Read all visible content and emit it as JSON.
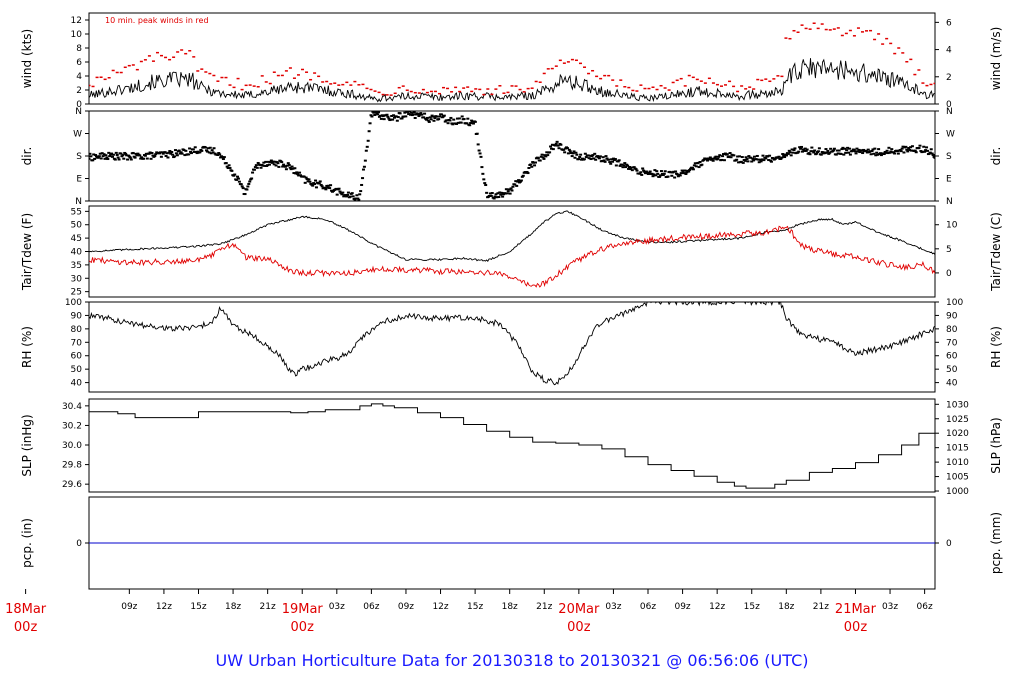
{
  "colors": {
    "series_primary": "#000000",
    "series_secondary": "#e00000",
    "precip_line": "#0000cc",
    "date_labels": "#e00000",
    "title": "#1a1aff"
  },
  "title": "UW Urban Horticulture Data for 20130318  to  20130321 @ 06:56:06  (UTC)",
  "chart_data": {
    "type": "line",
    "title": "UW Urban Horticulture Data for 20130318  to  20130321 @ 06:56:06  (UTC)",
    "x_unit": "hours from 2013-03-18 00z (UTC)",
    "x_range": [
      5.5,
      78.9
    ],
    "x_ticks": [
      {
        "t": 9,
        "label": "09z"
      },
      {
        "t": 12,
        "label": "12z"
      },
      {
        "t": 15,
        "label": "15z"
      },
      {
        "t": 18,
        "label": "18z"
      },
      {
        "t": 21,
        "label": "21z"
      },
      {
        "t": 27,
        "label": "03z"
      },
      {
        "t": 30,
        "label": "06z"
      },
      {
        "t": 33,
        "label": "09z"
      },
      {
        "t": 36,
        "label": "12z"
      },
      {
        "t": 39,
        "label": "15z"
      },
      {
        "t": 42,
        "label": "18z"
      },
      {
        "t": 45,
        "label": "21z"
      },
      {
        "t": 51,
        "label": "03z"
      },
      {
        "t": 54,
        "label": "06z"
      },
      {
        "t": 57,
        "label": "09z"
      },
      {
        "t": 60,
        "label": "12z"
      },
      {
        "t": 63,
        "label": "15z"
      },
      {
        "t": 66,
        "label": "18z"
      },
      {
        "t": 69,
        "label": "21z"
      },
      {
        "t": 75,
        "label": "03z"
      },
      {
        "t": 78,
        "label": "06z"
      }
    ],
    "date_labels": [
      {
        "t": 0,
        "day": "18Mar",
        "hour": "00z"
      },
      {
        "t": 24,
        "day": "19Mar",
        "hour": "00z"
      },
      {
        "t": 48,
        "day": "20Mar",
        "hour": "00z"
      },
      {
        "t": 72,
        "day": "21Mar",
        "hour": "00z"
      }
    ],
    "panels": [
      {
        "id": "wind",
        "ylabel_left": "wind (kts)",
        "ylabel_right": "wind (m/s)",
        "ylim": [
          0,
          13
        ],
        "yticks_left": [
          0,
          2,
          4,
          6,
          8,
          10,
          12
        ],
        "right_axis": {
          "ticks": [
            0,
            2,
            4,
            6
          ],
          "factor": 0.514444
        },
        "annotation": "10 min. peak winds in red",
        "series": [
          {
            "name": "wind speed",
            "style": "line",
            "x": [
              5.5,
              7,
              9,
              11,
              13,
              14.5,
              15,
              17,
              19,
              21,
              23,
              25,
              27,
              29,
              30,
              32,
              34,
              36,
              38,
              40,
              42,
              44,
              45.5,
              46.5,
              48,
              50,
              52,
              54,
              56,
              58,
              60,
              62,
              64,
              65.5,
              66,
              67,
              68,
              70,
              72,
              74,
              76,
              78,
              78.9
            ],
            "values": [
              1.0,
              1.5,
              2.0,
              2.8,
              3.2,
              3.0,
              2.2,
              1.3,
              1.0,
              1.5,
              2.2,
              2.0,
              1.5,
              1.0,
              0.6,
              0.8,
              1.0,
              0.8,
              1.0,
              0.9,
              0.8,
              1.1,
              2.0,
              3.0,
              2.6,
              1.6,
              1.0,
              0.6,
              1.0,
              1.6,
              1.4,
              1.0,
              1.2,
              1.5,
              3.2,
              4.2,
              4.6,
              4.6,
              4.2,
              3.6,
              2.6,
              1.3,
              1.0
            ]
          },
          {
            "name": "10 min. peak wind",
            "style": "points",
            "x": [
              5.5,
              7,
              9,
              11,
              13,
              14.5,
              15,
              17,
              19,
              21,
              23,
              25,
              27,
              29,
              30,
              32,
              34,
              36,
              38,
              40,
              42,
              44,
              45.5,
              46.5,
              48,
              50,
              52,
              54,
              56,
              58,
              60,
              62,
              64,
              65.5,
              66,
              67,
              68,
              70,
              72,
              74,
              76,
              78,
              78.9
            ],
            "values": [
              3.0,
              3.8,
              5.0,
              6.5,
              7.0,
              6.8,
              4.5,
              3.2,
              2.8,
              3.5,
              4.5,
              4.2,
              3.4,
              2.6,
              1.8,
              2.0,
              2.4,
              2.0,
              2.2,
              2.0,
              1.8,
              2.6,
              4.5,
              6.2,
              5.4,
              3.6,
              2.6,
              1.8,
              2.4,
              3.5,
              3.2,
              2.4,
              2.8,
              3.4,
              9.0,
              11.0,
              11.2,
              10.8,
              10.2,
              9.5,
              7.0,
              3.5,
              3.0
            ]
          }
        ]
      },
      {
        "id": "dir",
        "ylabel_left": "dir.",
        "ylabel_right": "dir.",
        "ylim": [
          0,
          360
        ],
        "yticks_left": [
          0,
          90,
          180,
          270,
          360
        ],
        "ytick_labels": [
          "N",
          "E",
          "S",
          "W",
          "N"
        ],
        "series": [
          {
            "name": "wind direction",
            "style": "points",
            "x": [
              5.5,
              7,
              9,
              11,
              13,
              15,
              16.5,
              17.5,
              18.5,
              19,
              20,
              21,
              22,
              23,
              24,
              25,
              26,
              27,
              28,
              29,
              30,
              31,
              32,
              33,
              34,
              35,
              36,
              37,
              38,
              39,
              40,
              41,
              42,
              43,
              44,
              45,
              46,
              47,
              48,
              49,
              50,
              51,
              52,
              53,
              54,
              55,
              56,
              57,
              58,
              59,
              60,
              61,
              62,
              63,
              64,
              65,
              66,
              67,
              68,
              70,
              72,
              74,
              76,
              78,
              78.9
            ],
            "values": [
              175,
              180,
              178,
              182,
              190,
              205,
              200,
              150,
              80,
              30,
              140,
              155,
              150,
              135,
              90,
              70,
              60,
              40,
              20,
              15,
              345,
              340,
              330,
              350,
              345,
              330,
              335,
              320,
              325,
              310,
              30,
              20,
              40,
              90,
              150,
              180,
              230,
              200,
              175,
              180,
              170,
              160,
              140,
              120,
              115,
              110,
              105,
              112,
              135,
              160,
              170,
              180,
              165,
              170,
              168,
              172,
              185,
              205,
              200,
              198,
              200,
              195,
              205,
              210,
              185
            ]
          }
        ]
      },
      {
        "id": "temp",
        "ylabel_left": "Tair/Tdew (F)",
        "ylabel_right": "Tair/Tdew (C)",
        "ylim": [
          23,
          57
        ],
        "yticks_left": [
          25,
          30,
          35,
          40,
          45,
          50,
          55
        ],
        "right_axis": {
          "ticks": [
            0,
            5,
            10
          ],
          "unit": "C"
        },
        "series": [
          {
            "name": "Tair",
            "style": "line",
            "x": [
              5.5,
              8,
              10,
              13,
              15,
              16,
              17,
              19,
              21,
              22,
              24,
              26,
              27,
              28.5,
              30,
              31,
              33,
              36,
              38,
              40,
              42,
              44,
              45,
              46,
              47,
              48,
              50,
              52,
              54,
              56,
              58,
              60,
              62,
              63,
              64,
              65,
              66,
              67,
              69,
              70,
              71,
              72,
              74,
              76,
              78.9
            ],
            "values": [
              40,
              40.5,
              41,
              41.5,
              42,
              42.5,
              43,
              46,
              50,
              51,
              53,
              52,
              50,
              47,
              43,
              41,
              37,
              37,
              37.5,
              36.5,
              40,
              47,
              51,
              54,
              55,
              53,
              48,
              45,
              43.5,
              43.5,
              44,
              44.5,
              45,
              46,
              47,
              47.5,
              48,
              50,
              52,
              52,
              50,
              51,
              47,
              44,
              39
            ]
          },
          {
            "name": "Tdew",
            "style": "line",
            "x": [
              5.5,
              7,
              9,
              11,
              13,
              15,
              16,
              17,
              18,
              19,
              20,
              21,
              22,
              23,
              24,
              26,
              28,
              30,
              32,
              34,
              36,
              38,
              40,
              42,
              43,
              44,
              45,
              46,
              47,
              48,
              50,
              52,
              54,
              56,
              58,
              60,
              62,
              64,
              65,
              66,
              66.5,
              67,
              68,
              70,
              72,
              74,
              76,
              78,
              78.9
            ],
            "values": [
              37,
              36.5,
              36,
              36,
              36.5,
              37,
              38,
              41,
              43,
              38,
              37.5,
              37,
              35,
              33,
              32,
              32,
              32,
              33,
              33.5,
              33,
              32.5,
              32.5,
              32,
              31,
              29,
              27,
              28,
              31,
              34,
              37,
              41,
              43,
              44,
              45,
              45.5,
              46,
              46.5,
              47,
              48,
              49,
              47,
              43,
              41,
              39,
              38,
              36,
              34,
              35,
              32
            ]
          }
        ]
      },
      {
        "id": "rh",
        "ylabel_left": "RH (%)",
        "ylabel_right": "RH (%)",
        "ylim": [
          33,
          100
        ],
        "yticks_left": [
          40,
          50,
          60,
          70,
          80,
          90,
          100
        ],
        "right_axis": {
          "ticks": [
            40,
            50,
            60,
            70,
            80,
            90,
            100
          ]
        },
        "series": [
          {
            "name": "relative humidity",
            "style": "line",
            "x": [
              5.5,
              7,
              9,
              11,
              13,
              15,
              16,
              17,
              17.7,
              18.5,
              19,
              20,
              22,
              23,
              23.5,
              24,
              26,
              27,
              28,
              29,
              31,
              33,
              35,
              37,
              39,
              41,
              42,
              43,
              43.5,
              44,
              45,
              46,
              47,
              48,
              49,
              50,
              52,
              53,
              54,
              55,
              58,
              60,
              63,
              65.5,
              66,
              67,
              68,
              70,
              72,
              74,
              76,
              78.9
            ],
            "values": [
              90,
              88,
              84,
              82,
              80,
              82,
              84,
              96,
              86,
              80,
              78,
              74,
              60,
              48,
              46,
              50,
              56,
              58,
              62,
              72,
              85,
              90,
              88,
              88,
              88,
              84,
              75,
              65,
              55,
              48,
              42,
              40,
              46,
              60,
              76,
              85,
              92,
              96,
              100,
              100,
              100,
              100,
              100,
              100,
              88,
              78,
              74,
              70,
              62,
              65,
              70,
              80
            ]
          }
        ]
      },
      {
        "id": "slp",
        "ylabel_left": "SLP (inHg)",
        "ylabel_right": "SLP (hPa)",
        "ylim": [
          29.52,
          30.47
        ],
        "yticks_left": [
          29.6,
          29.8,
          30.0,
          30.2,
          30.4
        ],
        "ytick_labels": [
          "29.6",
          "29.8",
          "30.0",
          "30.2",
          "30.4"
        ],
        "right_axis": {
          "ticks": [
            1000,
            1005,
            1010,
            1015,
            1020,
            1025,
            1030
          ],
          "factor": 33.8639
        },
        "series": [
          {
            "name": "sea level pressure",
            "style": "step",
            "x": [
              5.5,
              8,
              9.5,
              13,
              15,
              18,
              21,
              23,
              24.5,
              26,
              29,
              30,
              31,
              32,
              34,
              36,
              38,
              40,
              42,
              44,
              46,
              48,
              50,
              52,
              54,
              56,
              58,
              60,
              61.5,
              62.5,
              64,
              65,
              66,
              68,
              70,
              72,
              74,
              76,
              77.5,
              78.9
            ],
            "values": [
              30.34,
              30.32,
              30.28,
              30.28,
              30.34,
              30.34,
              30.34,
              30.33,
              30.34,
              30.36,
              30.4,
              30.42,
              30.4,
              30.38,
              30.33,
              30.28,
              30.21,
              30.14,
              30.08,
              30.03,
              30.02,
              30.0,
              29.96,
              29.88,
              29.8,
              29.74,
              29.68,
              29.62,
              29.58,
              29.56,
              29.56,
              29.6,
              29.64,
              29.72,
              29.76,
              29.82,
              29.9,
              30.0,
              30.12,
              30.18
            ]
          }
        ]
      },
      {
        "id": "pcp",
        "ylabel_left": "pcp. (in)",
        "ylabel_right": "pcp. (mm)",
        "ylim": [
          -1,
          1
        ],
        "yticks_left": [
          0
        ],
        "right_axis": {
          "ticks": [
            0
          ]
        },
        "series": [
          {
            "name": "precipitation",
            "style": "line",
            "x": [
              5.5,
              78.9
            ],
            "values": [
              0,
              0
            ]
          }
        ]
      }
    ]
  }
}
